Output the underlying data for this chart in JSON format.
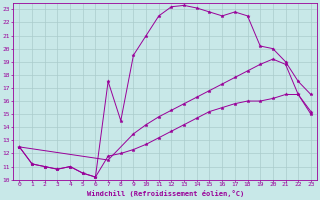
{
  "xlabel": "Windchill (Refroidissement éolien,°C)",
  "bg_color": "#c8e8e8",
  "line_color": "#990099",
  "grid_color": "#aacccc",
  "xlim": [
    -0.5,
    23.5
  ],
  "ylim": [
    10,
    23.5
  ],
  "xticks": [
    0,
    1,
    2,
    3,
    4,
    5,
    6,
    7,
    8,
    9,
    10,
    11,
    12,
    13,
    14,
    15,
    16,
    17,
    18,
    19,
    20,
    21,
    22,
    23
  ],
  "yticks": [
    10,
    11,
    12,
    13,
    14,
    15,
    16,
    17,
    18,
    19,
    20,
    21,
    22,
    23
  ],
  "curve1_x": [
    0,
    1,
    2,
    3,
    4,
    5,
    6,
    7,
    8,
    9,
    10,
    11,
    12,
    13,
    14,
    15,
    16,
    17,
    18,
    19,
    20,
    21,
    22,
    23
  ],
  "curve1_y": [
    12.5,
    11.2,
    11.0,
    10.8,
    11.0,
    10.5,
    10.2,
    17.5,
    14.5,
    19.5,
    21.0,
    22.5,
    23.2,
    23.3,
    23.1,
    22.8,
    22.5,
    22.8,
    22.5,
    20.2,
    20.0,
    19.0,
    17.5,
    16.5
  ],
  "curve2_x": [
    0,
    7,
    9,
    10,
    11,
    12,
    13,
    14,
    15,
    16,
    17,
    18,
    19,
    20,
    21,
    22,
    23
  ],
  "curve2_y": [
    12.5,
    11.5,
    13.5,
    14.2,
    14.8,
    15.3,
    15.8,
    16.3,
    16.8,
    17.3,
    17.8,
    18.3,
    18.8,
    19.2,
    18.8,
    16.5,
    15.0
  ],
  "curve3_x": [
    0,
    1,
    2,
    3,
    4,
    5,
    6,
    7,
    8,
    9,
    10,
    11,
    12,
    13,
    14,
    15,
    16,
    17,
    18,
    19,
    20,
    21,
    22,
    23
  ],
  "curve3_y": [
    12.5,
    11.2,
    11.0,
    10.8,
    11.0,
    10.5,
    10.2,
    11.8,
    12.0,
    12.3,
    12.7,
    13.2,
    13.7,
    14.2,
    14.7,
    15.2,
    15.5,
    15.8,
    16.0,
    16.0,
    16.2,
    16.5,
    16.5,
    15.2
  ]
}
